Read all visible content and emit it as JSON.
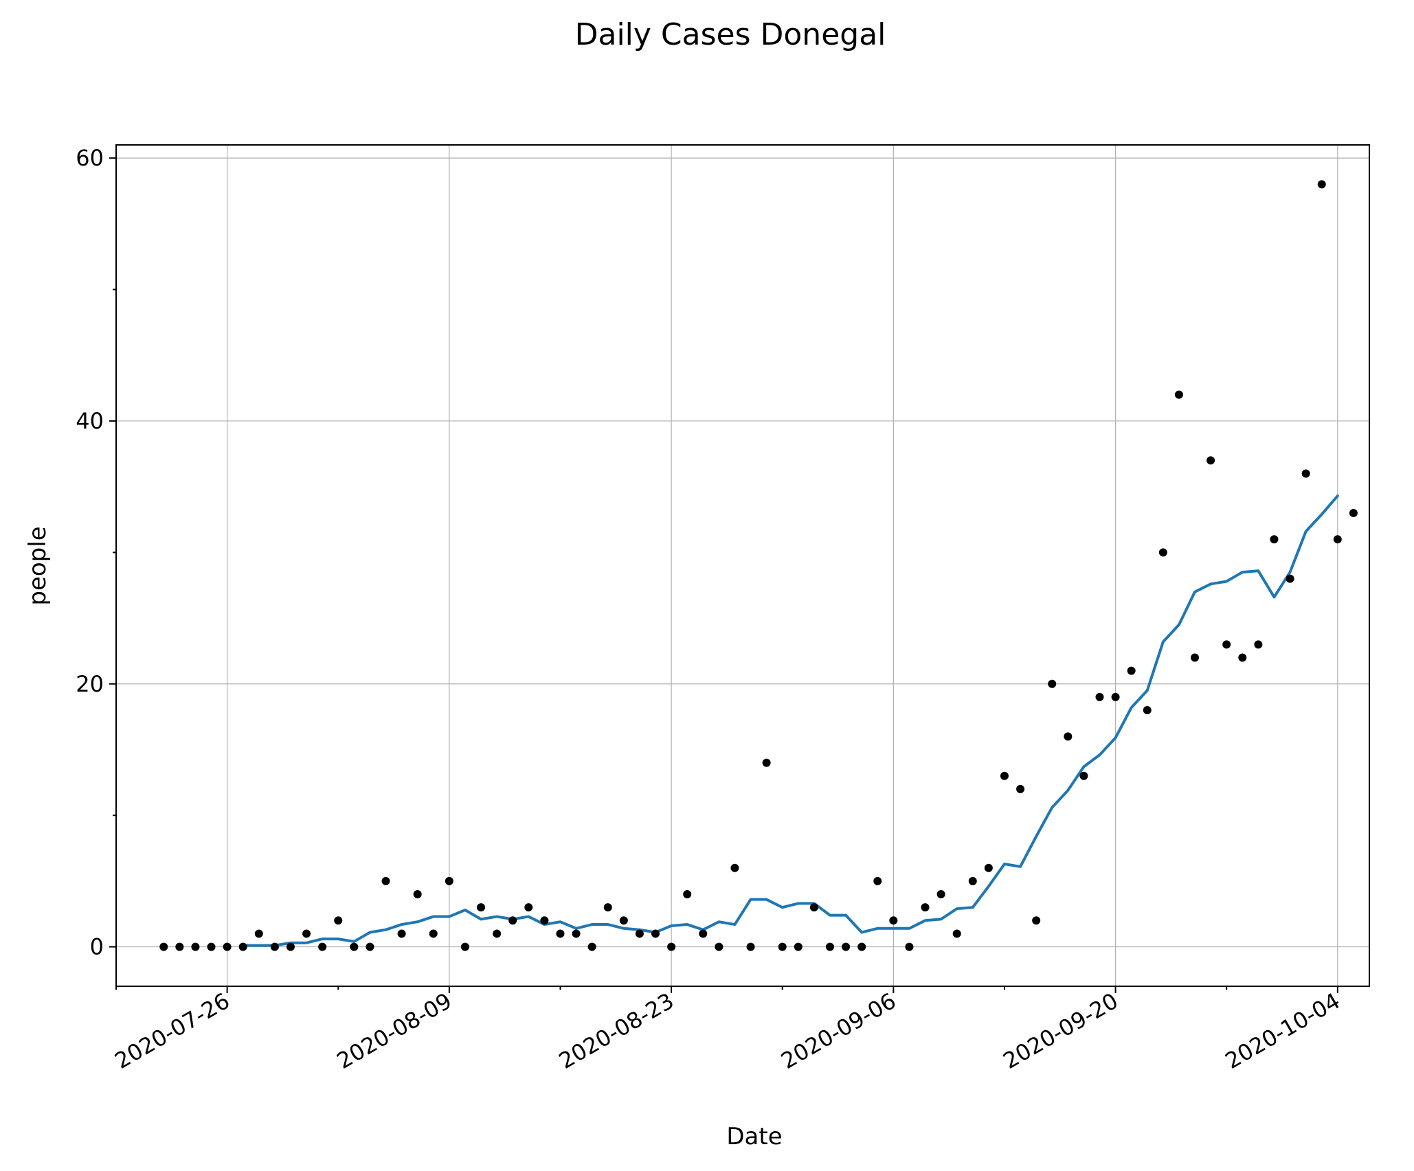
{
  "chart_data": {
    "type": "scatter",
    "title": "Daily Cases Donegal",
    "xlabel": "Date",
    "ylabel": "people",
    "x_start": "2020-07-22",
    "xlim": [
      "2020-07-19",
      "2020-10-06"
    ],
    "ylim": [
      -3,
      61
    ],
    "y_ticks": [
      0,
      20,
      40,
      60
    ],
    "y_minor_ticks": [
      10,
      30,
      50
    ],
    "x_ticks": [
      "2020-07-26",
      "2020-08-09",
      "2020-08-23",
      "2020-09-06",
      "2020-09-20",
      "2020-10-04"
    ],
    "x_minor_ticks": [
      "2020-07-19",
      "2020-08-02",
      "2020-08-16",
      "2020-08-30",
      "2020-09-13",
      "2020-09-27"
    ],
    "grid": true,
    "line_color": "#1f77b4",
    "series": [
      {
        "kind": "points",
        "values": [
          0,
          0,
          0,
          0,
          0,
          0,
          1,
          0,
          0,
          1,
          0,
          2,
          0,
          0,
          5,
          1,
          4,
          1,
          5,
          0,
          3,
          1,
          2,
          3,
          2,
          1,
          1,
          0,
          3,
          2,
          1,
          1,
          0,
          4,
          1,
          0,
          6,
          0,
          14,
          0,
          0,
          3,
          0,
          0,
          0,
          5,
          2,
          0,
          3,
          4,
          1,
          5,
          6,
          13,
          12,
          2,
          20,
          16,
          13,
          19,
          19,
          21,
          18,
          30,
          42,
          22,
          37,
          23,
          22,
          23,
          31,
          28,
          36,
          58,
          31,
          33
        ]
      },
      {
        "kind": "rolling-average",
        "start_date": "2020-07-27",
        "values": [
          0.1,
          0.1,
          0.1,
          0.3,
          0.3,
          0.6,
          0.6,
          0.4,
          1.1,
          1.3,
          1.7,
          1.9,
          2.3,
          2.3,
          2.8,
          2.1,
          2.3,
          2.1,
          2.3,
          1.7,
          1.9,
          1.4,
          1.7,
          1.7,
          1.4,
          1.3,
          1.1,
          1.6,
          1.7,
          1.3,
          1.9,
          1.7,
          3.6,
          3.6,
          3.0,
          3.3,
          3.3,
          2.4,
          2.4,
          1.1,
          1.4,
          1.4,
          1.4,
          2.0,
          2.1,
          2.9,
          3.0,
          4.6,
          6.3,
          6.1,
          8.4,
          10.6,
          11.9,
          13.7,
          14.6,
          15.9,
          18.2,
          19.5,
          23.2,
          24.5,
          27.0,
          27.6,
          27.8,
          28.5,
          28.6,
          26.6,
          28.5,
          31.6,
          32.9,
          34.3
        ]
      }
    ]
  }
}
